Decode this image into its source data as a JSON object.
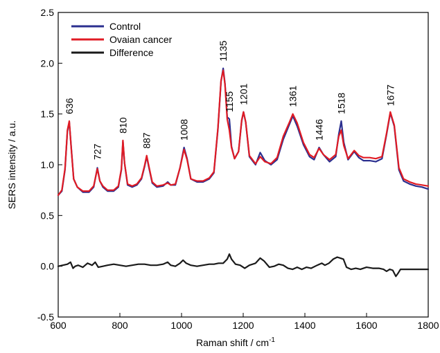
{
  "chart_data": {
    "type": "line",
    "xlabel": "Raman shift / cm",
    "xlabel_superscript": "-1",
    "ylabel": "SERS intensity / a.u.",
    "xlim": [
      600,
      1800
    ],
    "ylim": [
      -0.5,
      2.5
    ],
    "xticks": [
      600,
      800,
      1000,
      1200,
      1400,
      1600,
      1800
    ],
    "yticks": [
      -0.5,
      0.0,
      0.5,
      1.0,
      1.5,
      2.0,
      2.5
    ],
    "xtick_labels": [
      "600",
      "800",
      "1000",
      "1200",
      "1400",
      "1600",
      "1800"
    ],
    "ytick_labels": [
      "-0.5",
      "0.0",
      "0.5",
      "1.0",
      "1.5",
      "2.0",
      "2.5"
    ],
    "legend_position": "top-left",
    "peak_labels": [
      {
        "text": "636",
        "x": 636,
        "y": 1.43
      },
      {
        "text": "727",
        "x": 727,
        "y": 0.98
      },
      {
        "text": "810",
        "x": 810,
        "y": 1.24
      },
      {
        "text": "887",
        "x": 887,
        "y": 1.09
      },
      {
        "text": "1008",
        "x": 1008,
        "y": 1.17
      },
      {
        "text": "1135",
        "x": 1135,
        "y": 1.95
      },
      {
        "text": "1155",
        "x": 1155,
        "y": 1.45
      },
      {
        "text": "1201",
        "x": 1201,
        "y": 1.52
      },
      {
        "text": "1361",
        "x": 1361,
        "y": 1.5
      },
      {
        "text": "1446",
        "x": 1446,
        "y": 1.17
      },
      {
        "text": "1518",
        "x": 1518,
        "y": 1.43
      },
      {
        "text": "1677",
        "x": 1677,
        "y": 1.51
      }
    ],
    "series": [
      {
        "name": "Control",
        "color": "#2b2f8f",
        "x": [
          600,
          612,
          622,
          630,
          636,
          642,
          650,
          662,
          680,
          700,
          715,
          727,
          735,
          745,
          760,
          780,
          795,
          805,
          810,
          815,
          825,
          840,
          855,
          870,
          880,
          887,
          895,
          905,
          920,
          940,
          955,
          965,
          980,
          995,
          1008,
          1018,
          1030,
          1050,
          1070,
          1090,
          1105,
          1118,
          1128,
          1135,
          1141,
          1148,
          1155,
          1162,
          1172,
          1185,
          1195,
          1201,
          1208,
          1220,
          1240,
          1255,
          1270,
          1290,
          1310,
          1330,
          1350,
          1361,
          1375,
          1395,
          1415,
          1430,
          1446,
          1460,
          1480,
          1500,
          1510,
          1518,
          1526,
          1540,
          1560,
          1575,
          1590,
          1610,
          1630,
          1650,
          1665,
          1677,
          1690,
          1705,
          1720,
          1740,
          1760,
          1780,
          1800
        ],
        "y": [
          0.7,
          0.74,
          0.95,
          1.33,
          1.42,
          1.18,
          0.86,
          0.78,
          0.73,
          0.73,
          0.78,
          0.97,
          0.84,
          0.78,
          0.74,
          0.74,
          0.78,
          0.95,
          1.23,
          1.02,
          0.8,
          0.78,
          0.8,
          0.86,
          0.98,
          1.08,
          0.96,
          0.82,
          0.78,
          0.79,
          0.83,
          0.8,
          0.8,
          0.97,
          1.17,
          1.06,
          0.86,
          0.83,
          0.83,
          0.86,
          0.92,
          1.35,
          1.82,
          1.95,
          1.8,
          1.47,
          1.45,
          1.18,
          1.06,
          1.13,
          1.43,
          1.52,
          1.42,
          1.08,
          1.0,
          1.12,
          1.04,
          1.0,
          1.05,
          1.25,
          1.4,
          1.48,
          1.38,
          1.2,
          1.08,
          1.05,
          1.17,
          1.1,
          1.03,
          1.08,
          1.3,
          1.43,
          1.22,
          1.05,
          1.13,
          1.07,
          1.04,
          1.04,
          1.03,
          1.06,
          1.3,
          1.51,
          1.38,
          0.95,
          0.84,
          0.81,
          0.79,
          0.78,
          0.76
        ]
      },
      {
        "name": "Ovaian cancer",
        "color": "#e01b24",
        "x": [
          600,
          612,
          622,
          630,
          636,
          642,
          650,
          662,
          680,
          700,
          715,
          727,
          735,
          745,
          760,
          780,
          795,
          805,
          810,
          815,
          825,
          840,
          855,
          870,
          880,
          887,
          895,
          905,
          920,
          940,
          955,
          965,
          980,
          995,
          1008,
          1018,
          1030,
          1050,
          1070,
          1090,
          1105,
          1118,
          1128,
          1135,
          1141,
          1148,
          1155,
          1162,
          1172,
          1185,
          1195,
          1201,
          1208,
          1220,
          1240,
          1255,
          1270,
          1290,
          1310,
          1330,
          1350,
          1361,
          1375,
          1395,
          1415,
          1430,
          1446,
          1460,
          1480,
          1500,
          1510,
          1518,
          1526,
          1540,
          1560,
          1575,
          1590,
          1610,
          1630,
          1650,
          1665,
          1677,
          1690,
          1705,
          1720,
          1740,
          1760,
          1780,
          1800
        ],
        "y": [
          0.7,
          0.75,
          0.96,
          1.34,
          1.43,
          1.17,
          0.86,
          0.78,
          0.74,
          0.74,
          0.79,
          0.96,
          0.84,
          0.79,
          0.75,
          0.75,
          0.79,
          0.96,
          1.24,
          1.02,
          0.81,
          0.79,
          0.81,
          0.87,
          0.99,
          1.09,
          0.97,
          0.83,
          0.79,
          0.8,
          0.82,
          0.8,
          0.81,
          0.97,
          1.15,
          1.05,
          0.86,
          0.84,
          0.84,
          0.87,
          0.93,
          1.36,
          1.83,
          1.93,
          1.79,
          1.45,
          1.34,
          1.17,
          1.06,
          1.13,
          1.44,
          1.52,
          1.42,
          1.09,
          1.01,
          1.08,
          1.03,
          1.01,
          1.07,
          1.28,
          1.42,
          1.5,
          1.41,
          1.22,
          1.1,
          1.07,
          1.16,
          1.1,
          1.05,
          1.1,
          1.28,
          1.34,
          1.19,
          1.06,
          1.14,
          1.09,
          1.07,
          1.07,
          1.06,
          1.08,
          1.31,
          1.52,
          1.39,
          0.97,
          0.86,
          0.83,
          0.81,
          0.8,
          0.79
        ]
      },
      {
        "name": "Difference",
        "color": "#1a1a1a",
        "x": [
          600,
          615,
          630,
          640,
          648,
          655,
          665,
          680,
          695,
          710,
          720,
          730,
          745,
          760,
          780,
          800,
          820,
          840,
          860,
          880,
          900,
          920,
          940,
          955,
          965,
          980,
          995,
          1005,
          1015,
          1030,
          1050,
          1070,
          1090,
          1105,
          1120,
          1135,
          1148,
          1155,
          1162,
          1175,
          1190,
          1205,
          1220,
          1240,
          1255,
          1268,
          1285,
          1300,
          1315,
          1330,
          1345,
          1360,
          1375,
          1390,
          1405,
          1420,
          1440,
          1455,
          1465,
          1478,
          1492,
          1505,
          1515,
          1525,
          1535,
          1550,
          1565,
          1580,
          1600,
          1620,
          1640,
          1655,
          1665,
          1675,
          1685,
          1695,
          1702,
          1710,
          1720,
          1740,
          1760,
          1780,
          1800
        ],
        "y": [
          0.0,
          0.01,
          0.02,
          0.04,
          -0.02,
          0.0,
          0.01,
          -0.01,
          0.03,
          0.01,
          0.04,
          -0.01,
          0.0,
          0.01,
          0.02,
          0.01,
          0.0,
          0.01,
          0.02,
          0.02,
          0.01,
          0.01,
          0.02,
          0.04,
          0.01,
          0.0,
          0.03,
          0.06,
          0.03,
          0.01,
          0.0,
          0.01,
          0.02,
          0.02,
          0.03,
          0.03,
          0.07,
          0.12,
          0.07,
          0.02,
          0.01,
          -0.02,
          0.01,
          0.03,
          0.08,
          0.05,
          -0.01,
          0.0,
          0.02,
          0.01,
          -0.02,
          -0.03,
          -0.01,
          -0.03,
          -0.01,
          -0.02,
          0.01,
          0.03,
          0.01,
          0.03,
          0.07,
          0.09,
          0.08,
          0.07,
          -0.01,
          -0.03,
          -0.02,
          -0.03,
          -0.01,
          -0.02,
          -0.02,
          -0.03,
          -0.05,
          -0.03,
          -0.04,
          -0.1,
          -0.07,
          -0.03,
          -0.03,
          -0.03,
          -0.03,
          -0.03,
          -0.03
        ]
      }
    ]
  }
}
